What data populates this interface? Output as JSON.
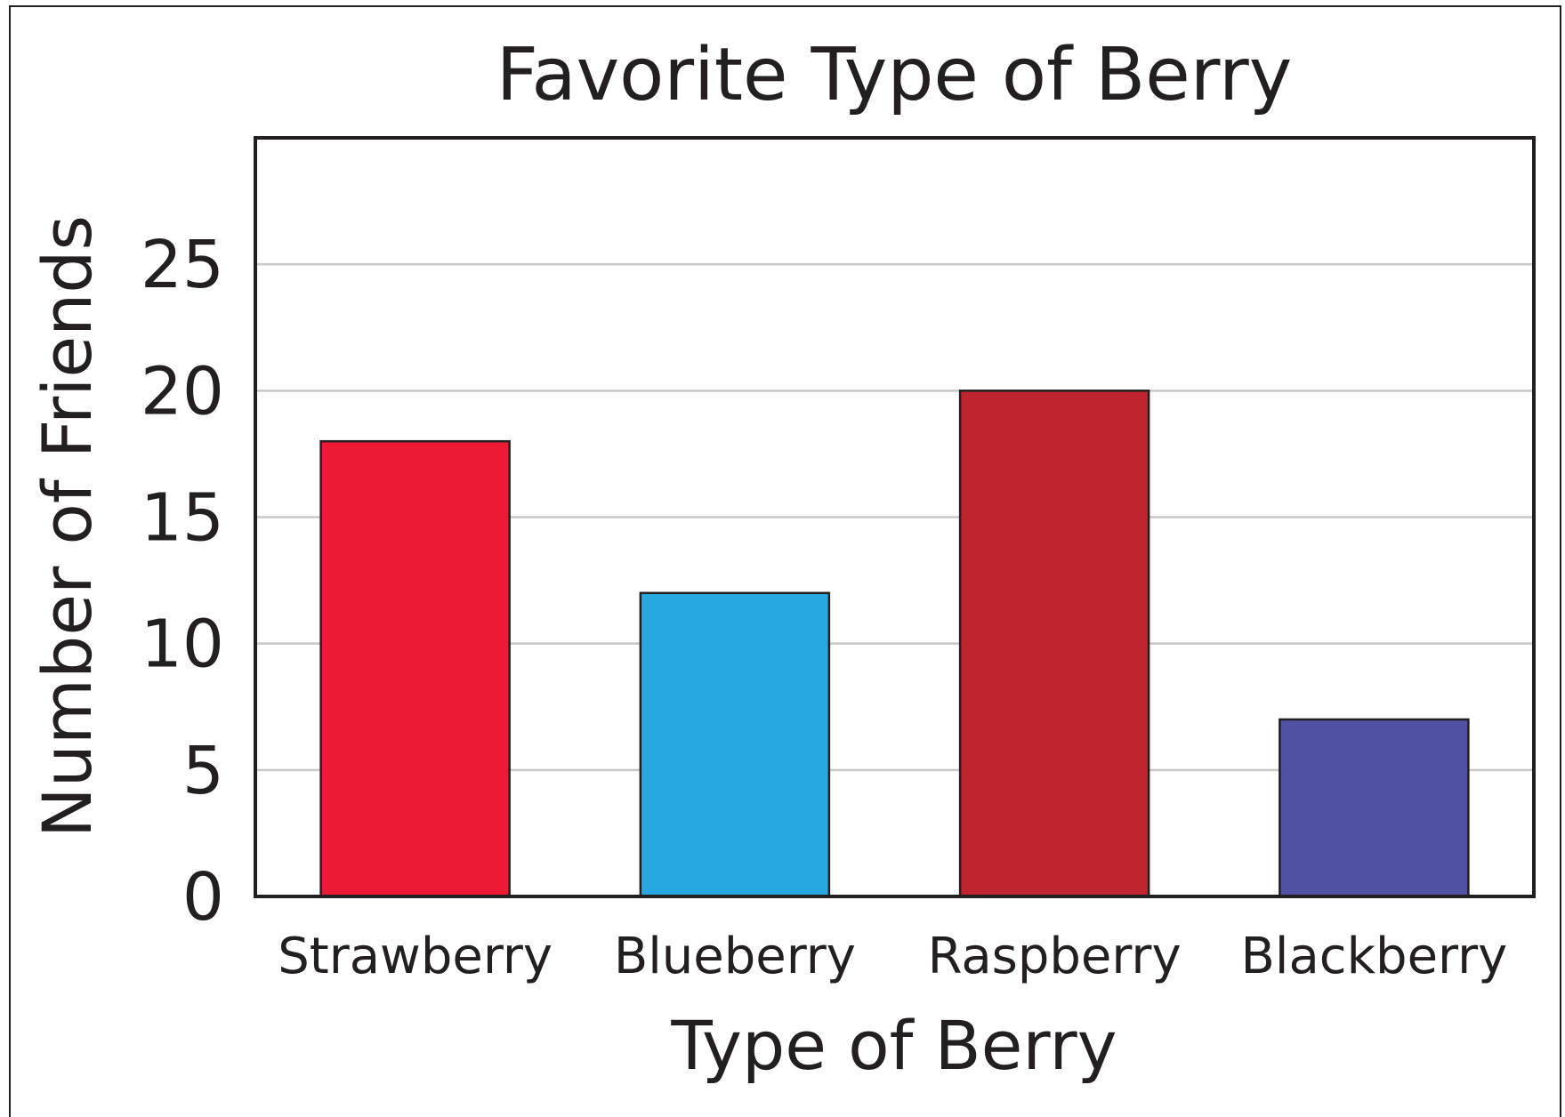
{
  "chart_data": {
    "type": "bar",
    "title": "Favorite Type of Berry",
    "xlabel": "Type of Berry",
    "ylabel": "Number of Friends",
    "categories": [
      "Strawberry",
      "Blueberry",
      "Raspberry",
      "Blackberry"
    ],
    "values": [
      18,
      12,
      20,
      7
    ],
    "colors": [
      "#ed1a35",
      "#27a8e0",
      "#c0242e",
      "#5051a2"
    ],
    "ylim": [
      0,
      30
    ],
    "yticks": [
      0,
      5,
      10,
      15,
      20,
      25
    ],
    "grid": true,
    "legend": "none"
  }
}
